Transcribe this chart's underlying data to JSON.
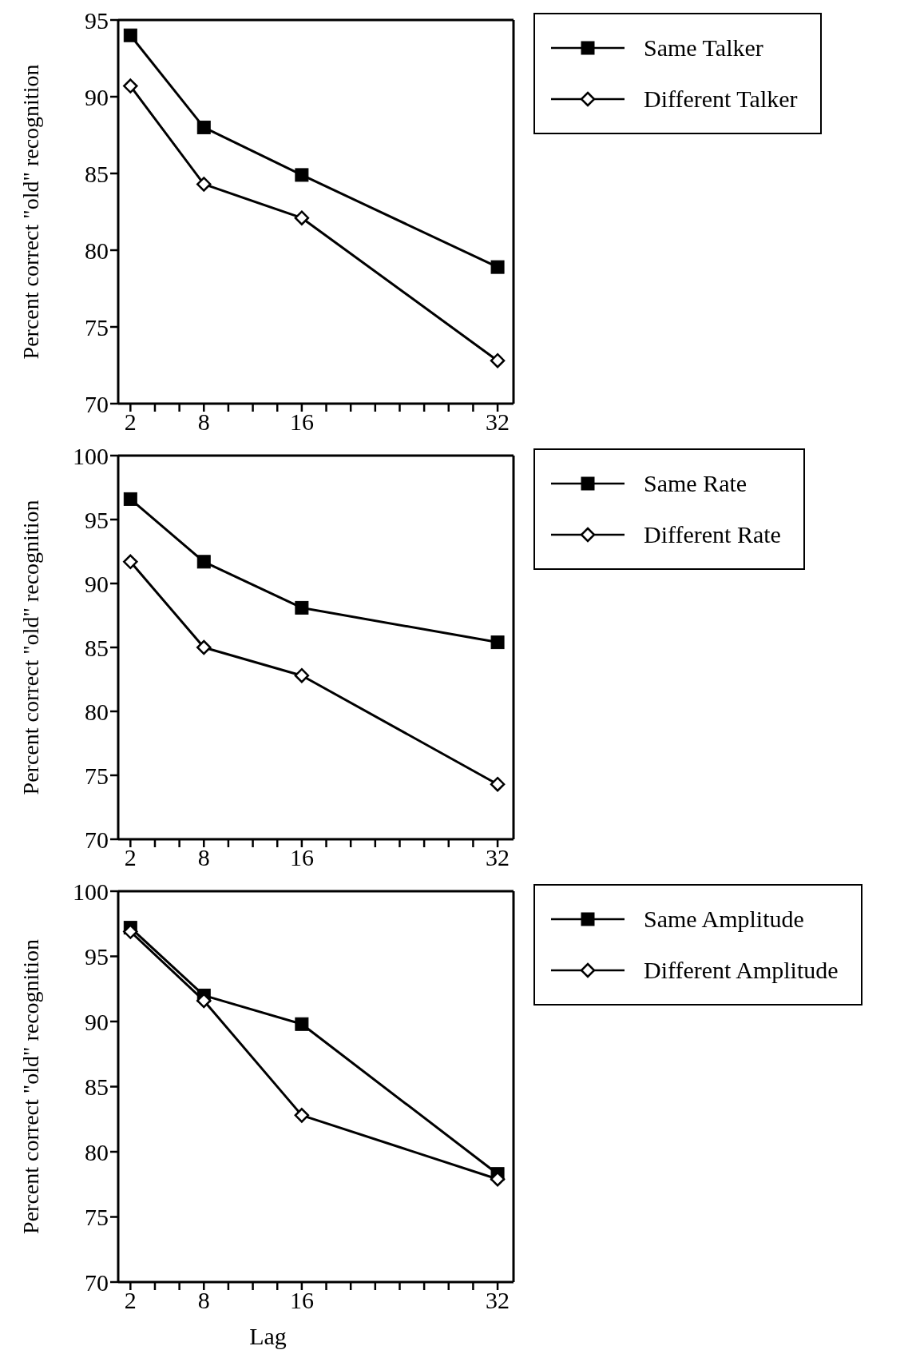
{
  "chart_data": [
    {
      "type": "line",
      "ylabel": "Percent correct \"old\" recognition",
      "x": [
        2,
        8,
        16,
        32
      ],
      "xlim": [
        1,
        33.3
      ],
      "xticks": [
        2,
        {
          "value": 4,
          "label": null
        },
        {
          "value": 6,
          "label": null
        },
        8,
        {
          "value": 10,
          "label": null
        },
        {
          "value": 12,
          "label": null
        },
        {
          "value": 14,
          "label": null
        },
        16,
        {
          "value": 18,
          "label": null
        },
        {
          "value": 20,
          "label": null
        },
        {
          "value": 22,
          "label": null
        },
        {
          "value": 24,
          "label": null
        },
        {
          "value": 26,
          "label": null
        },
        {
          "value": 28,
          "label": null
        },
        {
          "value": 30,
          "label": null
        },
        32
      ],
      "ylim": [
        70,
        95
      ],
      "yticks": [
        70,
        75,
        80,
        85,
        90,
        95
      ],
      "legend": "top right",
      "series": [
        {
          "name": "Same Talker",
          "color": "#000000",
          "marker": "square",
          "values": [
            94.0,
            88.0,
            84.9,
            78.9
          ]
        },
        {
          "name": "Different Talker",
          "color": "#000000",
          "marker": "diamond",
          "values": [
            90.7,
            84.3,
            82.1,
            72.8
          ]
        }
      ]
    },
    {
      "type": "line",
      "ylabel": "Percent correct \"old\" recognition",
      "x": [
        2,
        8,
        16,
        32
      ],
      "xlim": [
        1,
        33.3
      ],
      "xticks": [
        2,
        {
          "value": 4,
          "label": null
        },
        {
          "value": 6,
          "label": null
        },
        8,
        {
          "value": 10,
          "label": null
        },
        {
          "value": 12,
          "label": null
        },
        {
          "value": 14,
          "label": null
        },
        16,
        {
          "value": 18,
          "label": null
        },
        {
          "value": 20,
          "label": null
        },
        {
          "value": 22,
          "label": null
        },
        {
          "value": 24,
          "label": null
        },
        {
          "value": 26,
          "label": null
        },
        {
          "value": 28,
          "label": null
        },
        {
          "value": 30,
          "label": null
        },
        32
      ],
      "ylim": [
        70,
        100
      ],
      "yticks": [
        70,
        75,
        80,
        85,
        90,
        95,
        100
      ],
      "legend": "top right",
      "series": [
        {
          "name": "Same Rate",
          "color": "#000000",
          "marker": "square",
          "values": [
            96.6,
            91.7,
            88.1,
            85.4
          ]
        },
        {
          "name": "Different Rate",
          "color": "#000000",
          "marker": "diamond",
          "values": [
            91.7,
            85.0,
            82.8,
            74.3
          ]
        }
      ]
    },
    {
      "type": "line",
      "xlabel": "Lag",
      "ylabel": "Percent correct \"old\" recognition",
      "x": [
        2,
        8,
        16,
        32
      ],
      "xlim": [
        1,
        33.3
      ],
      "xticks": [
        2,
        {
          "value": 4,
          "label": null
        },
        {
          "value": 6,
          "label": null
        },
        8,
        {
          "value": 10,
          "label": null
        },
        {
          "value": 12,
          "label": null
        },
        {
          "value": 14,
          "label": null
        },
        16,
        {
          "value": 18,
          "label": null
        },
        {
          "value": 20,
          "label": null
        },
        {
          "value": 22,
          "label": null
        },
        {
          "value": 24,
          "label": null
        },
        {
          "value": 26,
          "label": null
        },
        {
          "value": 28,
          "label": null
        },
        {
          "value": 30,
          "label": null
        },
        32
      ],
      "ylim": [
        70,
        100
      ],
      "yticks": [
        70,
        75,
        80,
        85,
        90,
        95,
        100
      ],
      "legend": "top right",
      "series": [
        {
          "name": "Same Amplitude",
          "color": "#000000",
          "marker": "square",
          "values": [
            97.2,
            92.0,
            89.8,
            78.3
          ]
        },
        {
          "name": "Different Amplitude",
          "color": "#000000",
          "marker": "diamond",
          "values": [
            96.9,
            91.6,
            82.8,
            77.9
          ]
        }
      ]
    }
  ]
}
